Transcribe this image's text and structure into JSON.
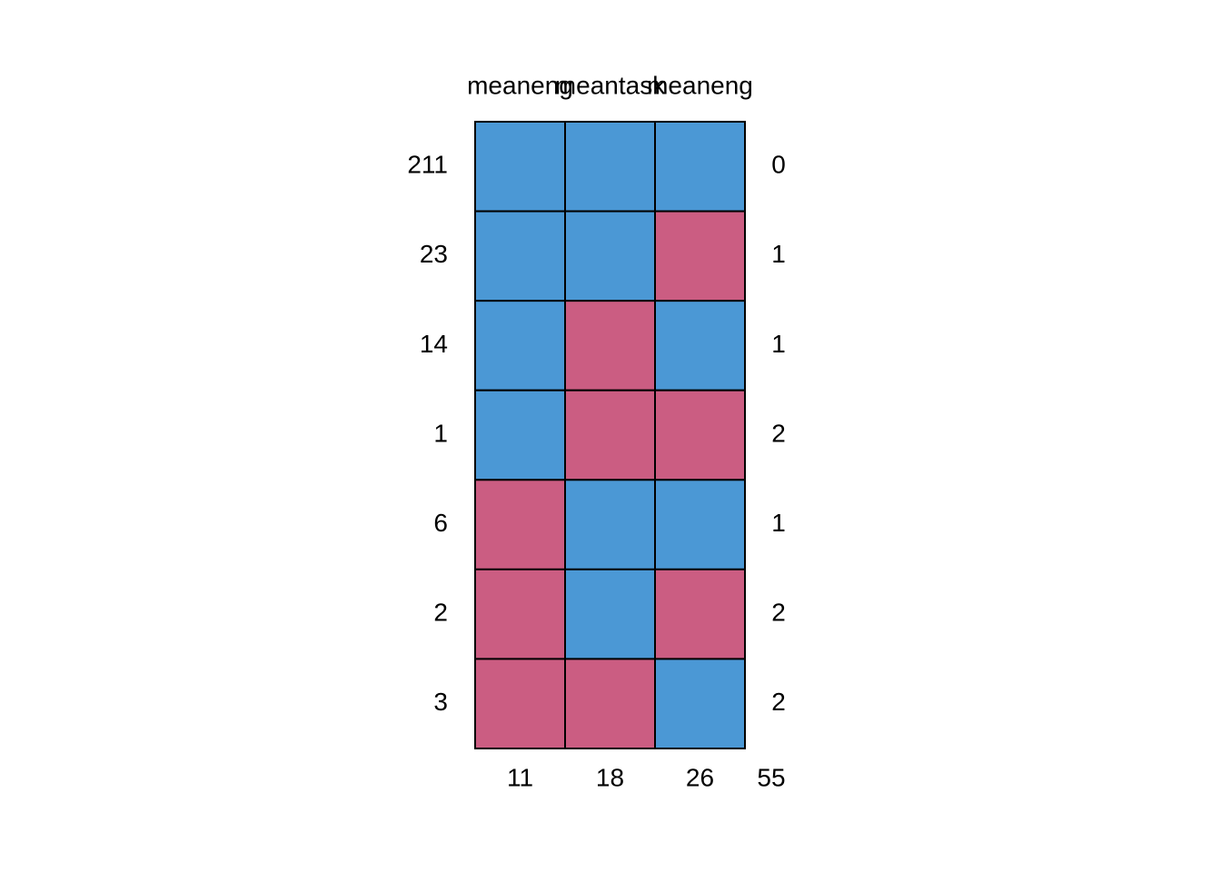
{
  "chart_data": {
    "type": "missing-pattern",
    "columns": [
      "meaneng",
      "meantask",
      "meaneng"
    ],
    "observed_color": "#4b98d5",
    "missing_color": "#cb5d82",
    "rows": [
      {
        "count": 211,
        "pattern": [
          1,
          1,
          1
        ],
        "missing": 0
      },
      {
        "count": 23,
        "pattern": [
          1,
          1,
          0
        ],
        "missing": 1
      },
      {
        "count": 14,
        "pattern": [
          1,
          0,
          1
        ],
        "missing": 1
      },
      {
        "count": 1,
        "pattern": [
          1,
          0,
          0
        ],
        "missing": 2
      },
      {
        "count": 6,
        "pattern": [
          0,
          1,
          1
        ],
        "missing": 1
      },
      {
        "count": 2,
        "pattern": [
          0,
          1,
          0
        ],
        "missing": 2
      },
      {
        "count": 3,
        "pattern": [
          0,
          0,
          1
        ],
        "missing": 2
      }
    ],
    "column_missing": [
      11,
      18,
      26
    ],
    "total_missing": 55
  }
}
